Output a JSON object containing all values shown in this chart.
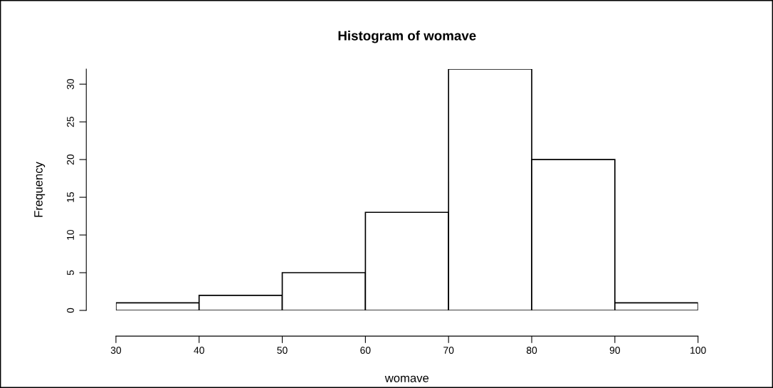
{
  "chart_data": {
    "type": "histogram",
    "title": "Histogram of womave",
    "xlabel": "womave",
    "ylabel": "Frequency",
    "bins": [
      30,
      40,
      50,
      60,
      70,
      80,
      90,
      100
    ],
    "values": [
      1,
      2,
      5,
      13,
      32,
      20,
      1
    ],
    "color": "#ffffff",
    "xlim": [
      30,
      100
    ],
    "xticks": [
      30,
      40,
      50,
      60,
      70,
      80,
      90,
      100
    ],
    "ylim": [
      0,
      32
    ],
    "yticks": [
      0,
      5,
      10,
      15,
      20,
      25,
      30
    ],
    "grid": false
  }
}
